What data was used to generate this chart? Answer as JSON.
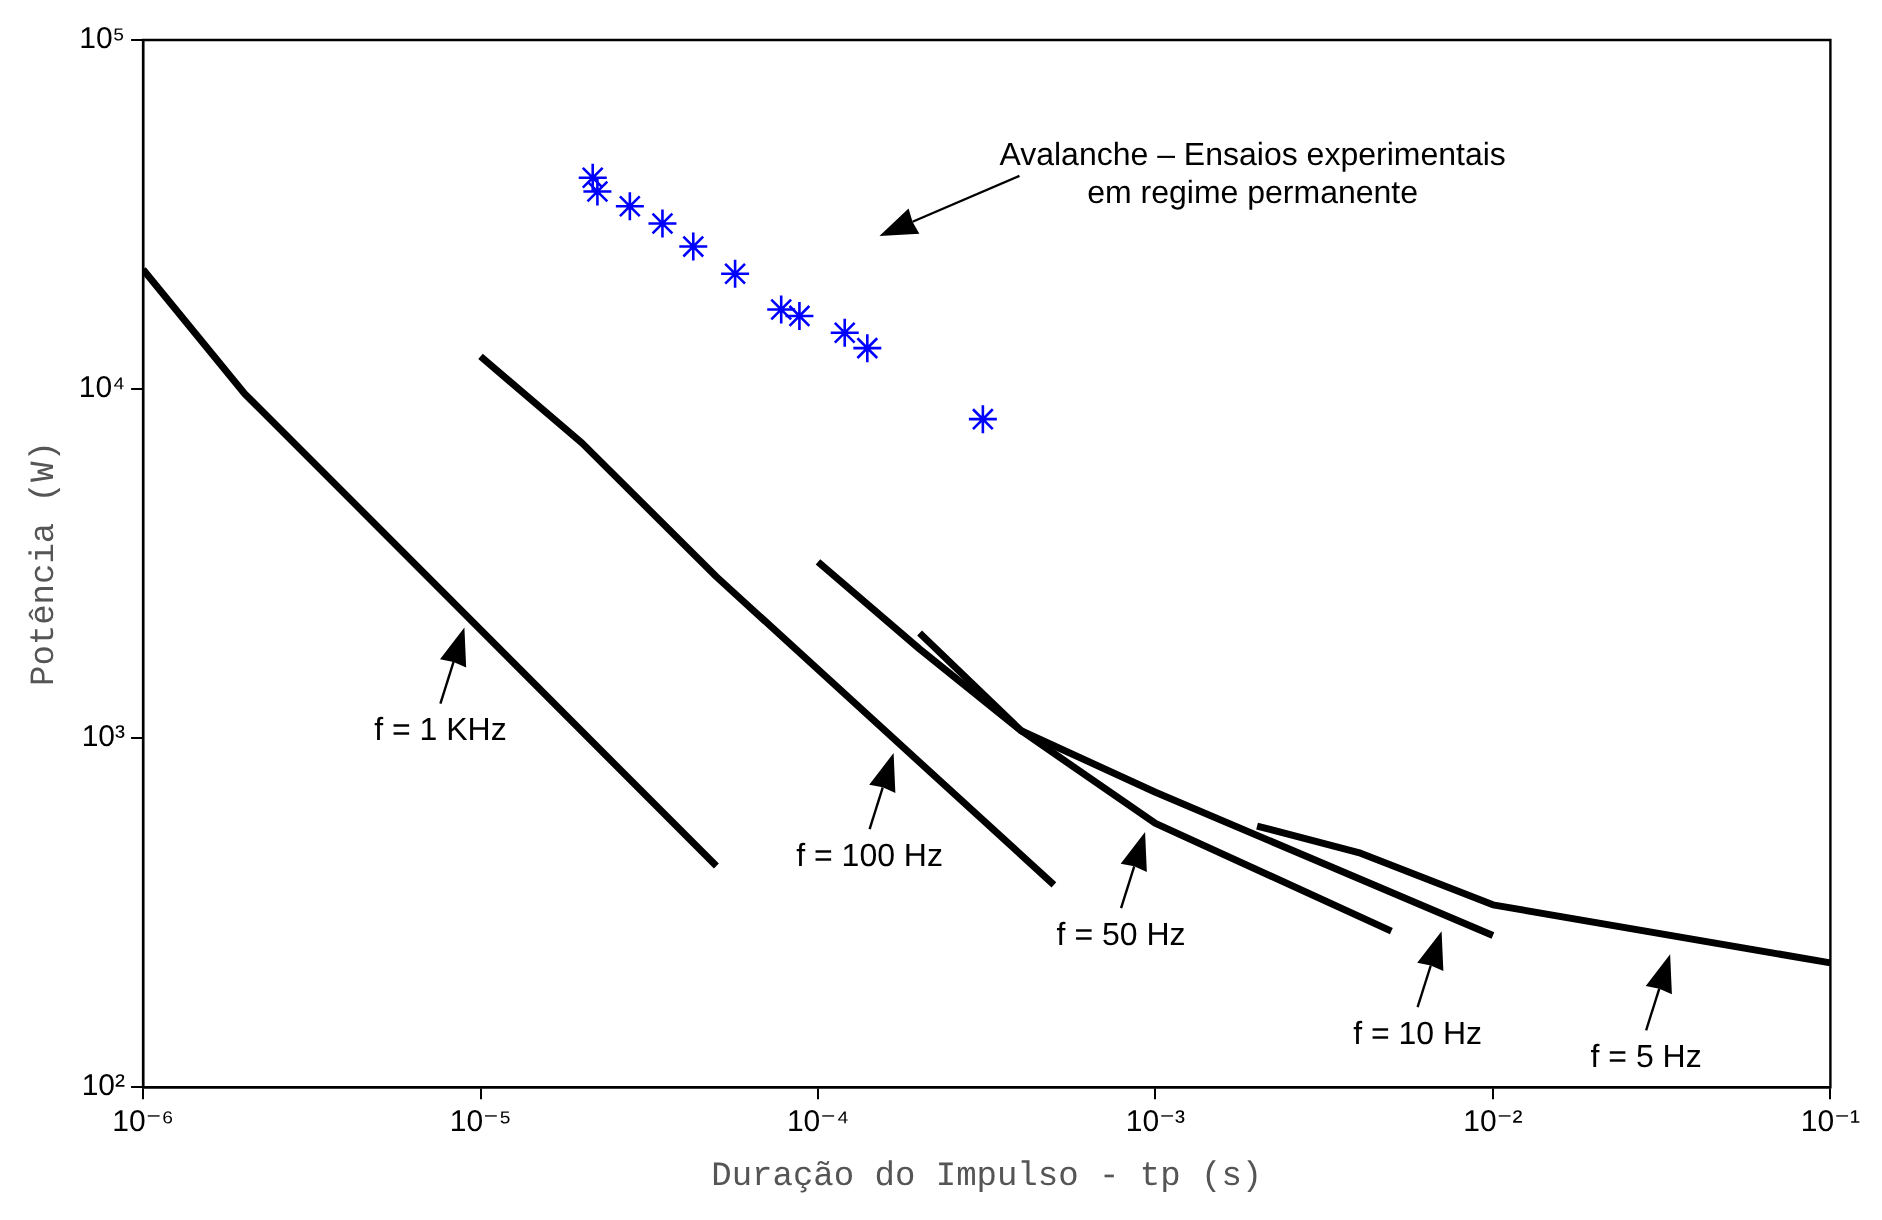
{
  "chart_data": {
    "type": "line",
    "xlabel": "Duração do Impulso - tp (s)",
    "ylabel": "Potência (W)",
    "log": "xy",
    "grid": false,
    "legend": false,
    "line_style": "solid",
    "xlim": [
      1e-06,
      0.1
    ],
    "ylim": [
      100,
      100000
    ],
    "xticks": [
      {
        "value": 1e-06,
        "label": "10⁻⁶"
      },
      {
        "value": 1e-05,
        "label": "10⁻⁵"
      },
      {
        "value": 0.0001,
        "label": "10⁻⁴"
      },
      {
        "value": 0.001,
        "label": "10⁻³"
      },
      {
        "value": 0.01,
        "label": "10⁻²"
      },
      {
        "value": 0.1,
        "label": "10⁻¹"
      }
    ],
    "yticks": [
      {
        "value": 100,
        "label": "10²"
      },
      {
        "value": 1000,
        "label": "10³"
      },
      {
        "value": 10000,
        "label": "10⁴"
      },
      {
        "value": 100000,
        "label": "10⁵"
      }
    ],
    "series": [
      {
        "type": "scatter",
        "color": "#0000ff",
        "marker": "cross",
        "x": [
          2.15e-05,
          2.22e-05,
          2.77e-05,
          3.46e-05,
          4.27e-05,
          5.68e-05,
          7.78e-05,
          8.81e-05,
          0.00012,
          0.00014,
          0.000308
        ],
        "values": [
          40300,
          36800,
          33400,
          29800,
          25600,
          21400,
          16900,
          16200,
          14500,
          13100,
          8200
        ]
      },
      {
        "color": "#000000",
        "marker": "none",
        "x": [
          1e-06,
          2e-06,
          5e-06,
          5e-05
        ],
        "values": [
          22000,
          9700,
          4000,
          430
        ]
      },
      {
        "color": "#000000",
        "marker": "none",
        "x": [
          1e-05,
          2e-05,
          5e-05,
          0.0005
        ],
        "values": [
          12400,
          7000,
          2900,
          380
        ]
      },
      {
        "color": "#000000",
        "marker": "none",
        "x": [
          0.0001,
          0.0002,
          0.0004,
          0.001,
          0.005
        ],
        "values": [
          3200,
          1800,
          1050,
          570,
          280
        ]
      },
      {
        "color": "#000000",
        "marker": "none",
        "x": [
          0.0002,
          0.0004,
          0.001,
          0.01
        ],
        "values": [
          2000,
          1050,
          700,
          272
        ]
      },
      {
        "color": "#000000",
        "marker": "none",
        "x": [
          0.002,
          0.004,
          0.01,
          0.1
        ],
        "values": [
          560,
          470,
          333,
          227
        ]
      }
    ],
    "annotations": [
      "Avalanche – Ensaios experimentais\nem regime permanente",
      "f = 1 KHz",
      "f = 100 Hz",
      "f = 50 Hz",
      "f = 10 Hz",
      "f = 5 Hz"
    ]
  }
}
